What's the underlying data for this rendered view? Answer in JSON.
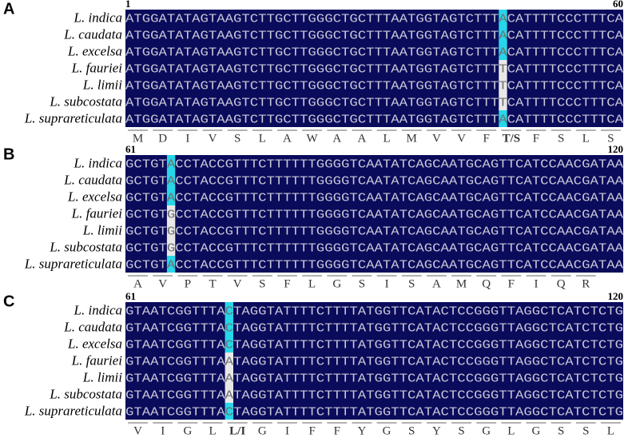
{
  "panels": [
    {
      "label": "A",
      "start": 1,
      "end": 60,
      "rows": [
        {
          "name": "L. indica",
          "before": "ATGGATATAGTAAGTCTTGCTTGGGCTGCTTTAATGGTAGTCTTT",
          "site": "A",
          "after": "CATTTTCCCTTTCA"
        },
        {
          "name": "L. caudata",
          "before": "ATGGATATAGTAAGTCTTGCTTGGGCTGCTTTAATGGTAGTCTTT",
          "site": "A",
          "after": "CATTTTCCCTTTCA"
        },
        {
          "name": "L. excelsa",
          "before": "ATGGATATAGTAAGTCTTGCTTGGGCTGCTTTAATGGTAGTCTTT",
          "site": "A",
          "after": "CATTTTCCCTTTCA"
        },
        {
          "name": "L. fauriei",
          "before": "ATGGATATAGTAAGTCTTGCTTGGGCTGCTTTAATGGTAGTCTTT",
          "site": "T",
          "after": "CATTTTCCCTTTCA"
        },
        {
          "name": "L. limii",
          "before": "ATGGATATAGTAAGTCTTGCTTGGGCTGCTTTAATGGTAGTCTTT",
          "site": "T",
          "after": "CATTTTCCCTTTCA"
        },
        {
          "name": "L. subcostata",
          "before": "ATGGATATAGTAAGTCTTGCTTGGGCTGCTTTAATGGTAGTCTTT",
          "site": "T",
          "after": "CATTTTCCCTTTCA"
        },
        {
          "name": "L. suprareticulata",
          "before": "ATGGATATAGTAAGTCTTGCTTGGGCTGCTTTAATGGTAGTCTTT",
          "site": "A",
          "after": "CATTTTCCCTTTCA"
        }
      ],
      "aminoacids": [
        "M",
        "D",
        "I",
        "V",
        "S",
        "L",
        "A",
        "W",
        "A",
        "A",
        "L",
        "M",
        "V",
        "V",
        "F",
        "T/S",
        "F",
        "S",
        "L",
        "S"
      ]
    },
    {
      "label": "B",
      "start": 61,
      "end": 120,
      "rows": [
        {
          "name": "L. indica",
          "before": "GCTGT",
          "site": "A",
          "after": "CCTACCGTTTCTTTTTTGGGGTCAATATCAGCAATGCAGTTCATCCAACGATAA"
        },
        {
          "name": "L. caudata",
          "before": "GCTGT",
          "site": "A",
          "after": "CCTACCGTTTCTTTTTTGGGGTCAATATCAGCAATGCAGTTCATCCAACGATAA"
        },
        {
          "name": "L. excelsa",
          "before": "GCTGT",
          "site": "A",
          "after": "CCTACCGTTTCTTTTTTGGGGTCAATATCAGCAATGCAGTTCATCCAACGATAA"
        },
        {
          "name": "L. fauriei",
          "before": "GCTGT",
          "site": "G",
          "after": "CCTACCGTTTCTTTTTTGGGGTCAATATCAGCAATGCAGTTCATCCAACGATAA"
        },
        {
          "name": "L. limii",
          "before": "GCTGT",
          "site": "G",
          "after": "CCTACCGTTTCTTTTTTGGGGTCAATATCAGCAATGCAGTTCATCCAACGATAA"
        },
        {
          "name": "L. subcostata",
          "before": "GCTGT",
          "site": "G",
          "after": "CCTACCGTTTCTTTTTTGGGGTCAATATCAGCAATGCAGTTCATCCAACGATAA"
        },
        {
          "name": "L. suprareticulata",
          "before": "GCTGT",
          "site": "A",
          "after": "CCTACCGTTTCTTTTTTGGGGTCAATATCAGCAATGCAGTTCATCCAACGATAA"
        }
      ],
      "aminoacids": [
        "A",
        "V",
        "P",
        "T",
        "V",
        "S",
        "F",
        "L",
        "G",
        "S",
        "I",
        "S",
        "A",
        "M",
        "Q",
        "F",
        "I",
        "Q",
        "R"
      ]
    },
    {
      "label": "C",
      "start": 61,
      "end": 120,
      "rows": [
        {
          "name": "L. indica",
          "before": "GTAATCGGTTTA",
          "site": "C",
          "after": "TAGGTATTTTCTTTTATGGTTCATACTCCGGGTTAGGCTCATCTCTG"
        },
        {
          "name": "L. caudata",
          "before": "GTAATCGGTTTA",
          "site": "C",
          "after": "TAGGTATTTTCTTTTATGGTTCATACTCCGGGTTAGGCTCATCTCTG"
        },
        {
          "name": "L. excelsa",
          "before": "GTAATCGGTTTA",
          "site": "C",
          "after": "TAGGTATTTTCTTTTATGGTTCATACTCCGGGTTAGGCTCATCTCTG"
        },
        {
          "name": "L. fauriei",
          "before": "GTAATCGGTTTA",
          "site": "A",
          "after": "TAGGTATTTTCTTTTATGGTTCATACTCCGGGTTAGGCTCATCTCTG"
        },
        {
          "name": "L. limii",
          "before": "GTAATCGGTTTA",
          "site": "A",
          "after": "TAGGTATTTTCTTTTATGGTTCATACTCCGGGTTAGGCTCATCTCTG"
        },
        {
          "name": "L. subcostata",
          "before": "GTAATCGGTTTA",
          "site": "A",
          "after": "TAGGTATTTTCTTTTATGGTTCATACTCCGGGTTAGGCTCATCTCTG"
        },
        {
          "name": "L. suprareticulata",
          "before": "GTAATCGGTTTA",
          "site": "C",
          "after": "TAGGTATTTTCTTTTATGGTTCATACTCCGGGTTAGGCTCATCTCTG"
        }
      ],
      "aminoacids": [
        "V",
        "I",
        "G",
        "L",
        "L/I",
        "G",
        "I",
        "F",
        "F",
        "Y",
        "G",
        "S",
        "Y",
        "S",
        "G",
        "L",
        "G",
        "S",
        "S",
        "L"
      ]
    }
  ]
}
